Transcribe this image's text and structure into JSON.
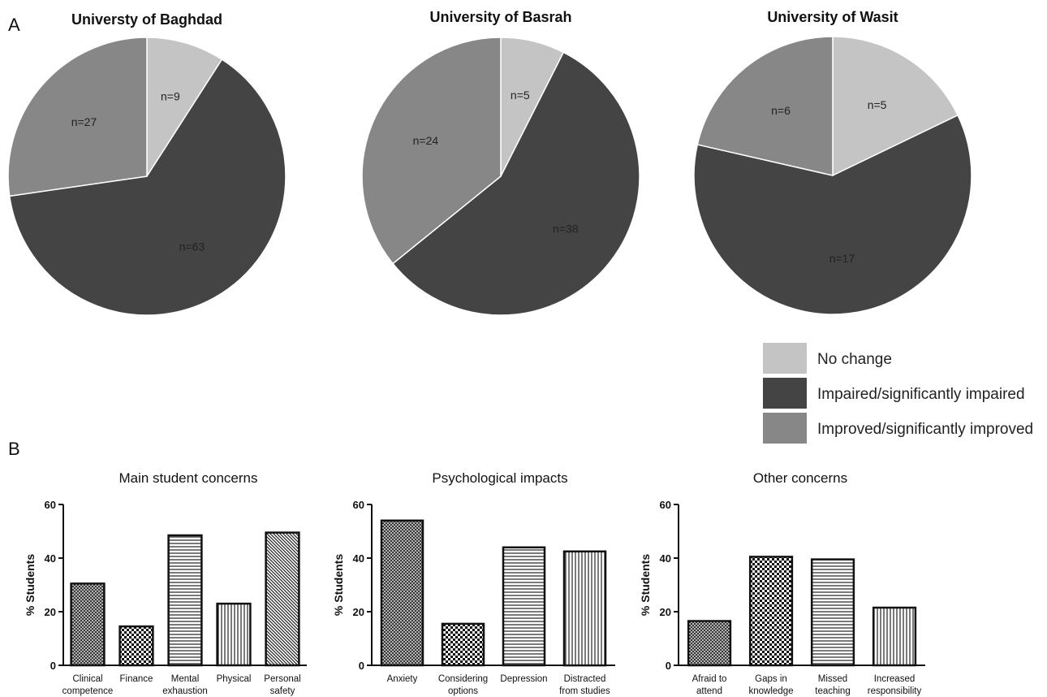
{
  "panels": {
    "a": "A",
    "b": "B"
  },
  "colors": {
    "no_change": "#c4c4c4",
    "impaired": "#444444",
    "improved": "#878787"
  },
  "legend": [
    {
      "label": "No change",
      "color_key": "no_change"
    },
    {
      "label": "Impaired/significantly impaired",
      "color_key": "impaired"
    },
    {
      "label": "Improved/significantly improved",
      "color_key": "improved"
    }
  ],
  "chart_data": [
    {
      "type": "pie",
      "title": "Universty of Baghdad",
      "slices": [
        {
          "key": "no_change",
          "label": "n=9",
          "value": 9
        },
        {
          "key": "impaired",
          "label": "n=63",
          "value": 63
        },
        {
          "key": "improved",
          "label": "n=27",
          "value": 27
        }
      ]
    },
    {
      "type": "pie",
      "title": "University of Basrah",
      "slices": [
        {
          "key": "no_change",
          "label": "n=5",
          "value": 5
        },
        {
          "key": "impaired",
          "label": "n=38",
          "value": 38
        },
        {
          "key": "improved",
          "label": "n=24",
          "value": 24
        }
      ]
    },
    {
      "type": "pie",
      "title": "University of Wasit",
      "slices": [
        {
          "key": "no_change",
          "label": "n=5",
          "value": 5
        },
        {
          "key": "impaired",
          "label": "n=17",
          "value": 17
        },
        {
          "key": "improved",
          "label": "n=6",
          "value": 6
        }
      ]
    },
    {
      "type": "bar",
      "title": "Main student concerns",
      "ylabel": "% Students",
      "ylim": [
        0,
        60
      ],
      "yticks": [
        0,
        20,
        40,
        60
      ],
      "categories": [
        [
          "Clinical",
          "competence"
        ],
        [
          "Finance"
        ],
        [
          "Mental",
          "exhaustion"
        ],
        [
          "Physical"
        ],
        [
          "Personal",
          "safety"
        ]
      ],
      "values": [
        30.5,
        14.5,
        48.5,
        23,
        49.5
      ],
      "patterns": [
        "crosshatch",
        "checker",
        "horizontal",
        "vertical",
        "diagonal"
      ]
    },
    {
      "type": "bar",
      "title": "Psychological impacts",
      "ylabel": "% Students",
      "ylim": [
        0,
        60
      ],
      "yticks": [
        0,
        20,
        40,
        60
      ],
      "categories": [
        [
          "Anxiety"
        ],
        [
          "Considering",
          "options"
        ],
        [
          "Depression"
        ],
        [
          "Distracted",
          "from studies"
        ]
      ],
      "values": [
        54,
        15.5,
        44,
        42.5
      ],
      "patterns": [
        "crosshatch",
        "checker",
        "horizontal",
        "vertical"
      ]
    },
    {
      "type": "bar",
      "title": "Other concerns",
      "ylabel": "% Students",
      "ylim": [
        0,
        60
      ],
      "yticks": [
        0,
        20,
        40,
        60
      ],
      "categories": [
        [
          "Afraid to",
          "attend"
        ],
        [
          "Gaps in",
          "knowledge"
        ],
        [
          "Missed",
          "teaching"
        ],
        [
          "Increased",
          "responsibility"
        ]
      ],
      "values": [
        16.5,
        40.5,
        39.5,
        21.5
      ],
      "patterns": [
        "crosshatch",
        "checker",
        "horizontal",
        "vertical"
      ]
    }
  ]
}
